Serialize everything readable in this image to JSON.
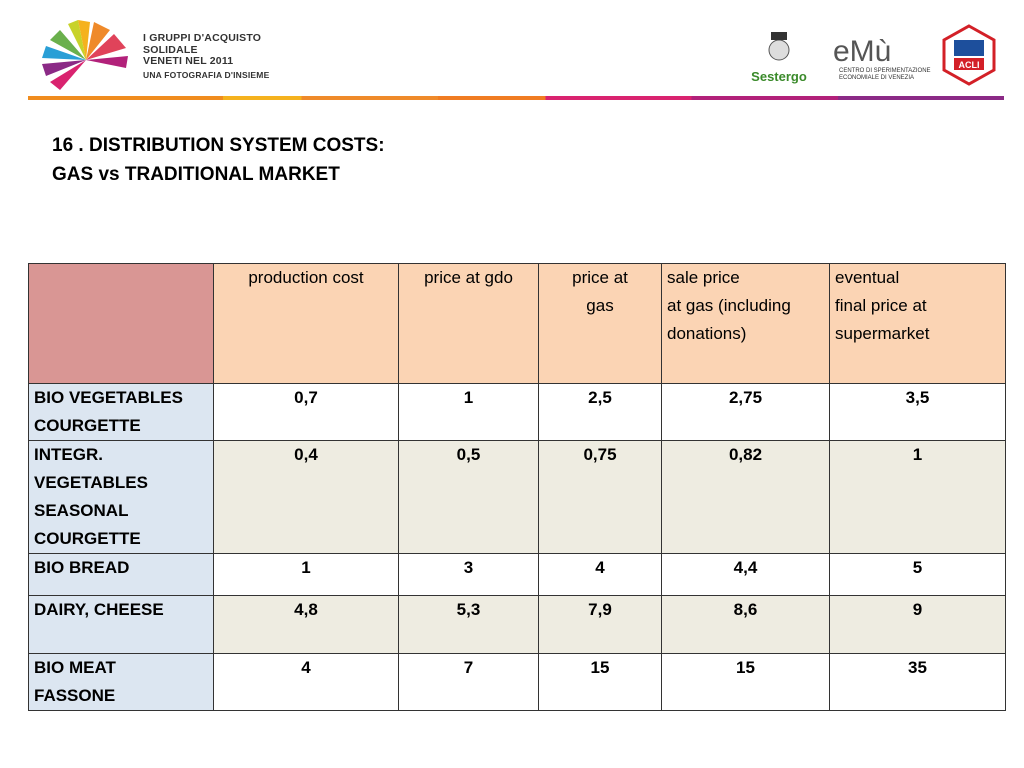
{
  "header": {
    "logo_lines": [
      "I GRUPPI D'ACQUISTO",
      "SOLIDALE",
      "VENETI NEL 2011",
      "UNA FOTOGRAFIA D'INSIEME"
    ],
    "sestergo": "Sestergo",
    "emu": "eMù",
    "emu_sub": [
      "CENTRO DI SPERIMENTAZIONE",
      "ECONOMIALE DI VENEZIA"
    ],
    "acli": "ACLI"
  },
  "title": "16 . DISTRIBUTION SYSTEM COSTS:\nGAS vs TRADITIONAL MARKET",
  "table": {
    "columns": [
      "production cost",
      "price at gdo",
      "price at\ngas",
      "sale price\nat gas (including\ndonations)",
      "eventual\nfinal price at\nsupermarket"
    ],
    "rows": [
      {
        "label": " BIO VEGETABLES\nCOURGETTE",
        "cells": [
          "0,7",
          "1",
          "2,5",
          "2,75",
          "3,5"
        ]
      },
      {
        "label": "INTEGR.\nVEGETABLES\nSEASONAL\nCOURGETTE",
        "cells": [
          "0,4",
          "0,5",
          "0,75",
          "0,82",
          "1"
        ]
      },
      {
        "label": "BIO BREAD",
        "cells": [
          "1",
          "3",
          "4",
          "4,4",
          "5"
        ]
      },
      {
        "label": "DAIRY, CHEESE",
        "cells": [
          "4,8",
          "5,3",
          "7,9",
          "8,6",
          "9"
        ]
      },
      {
        "label": "BIO MEAT\nFASSONE",
        "cells": [
          "4",
          "7",
          "15",
          "15",
          "35"
        ]
      }
    ]
  }
}
